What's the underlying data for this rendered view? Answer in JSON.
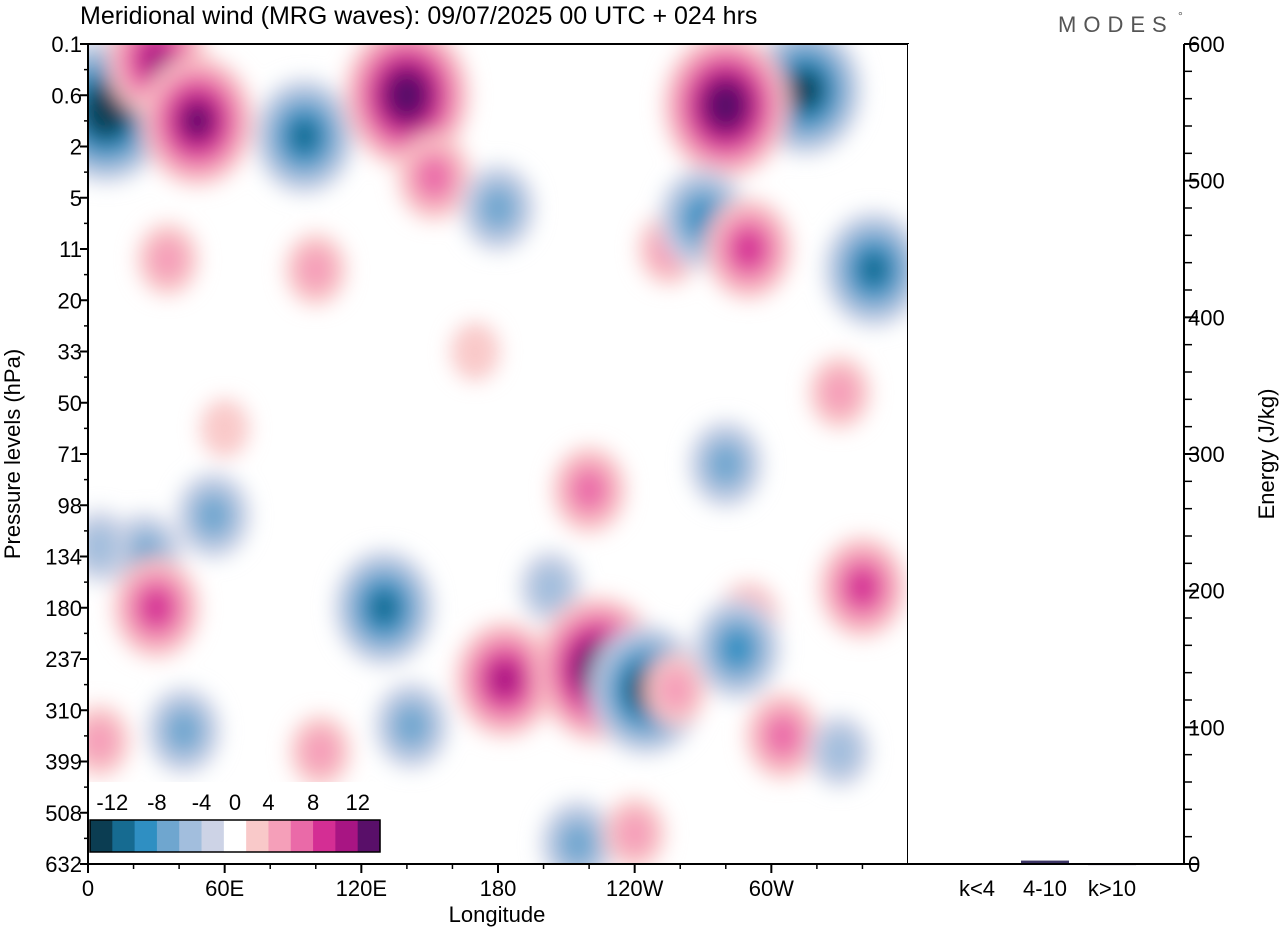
{
  "header": {
    "title": "Meridional wind (MRG waves):  09/07/2025  00 UTC  + 024 hrs",
    "brand": "MODES",
    "brand_mark": "°"
  },
  "chart_data": [
    {
      "type": "heatmap",
      "title": "Meridional wind (MRG waves):  09/07/2025  00 UTC  + 024 hrs",
      "xlabel": "Longitude",
      "ylabel": "Pressure levels (hPa)",
      "x_ticks": [
        "0",
        "60E",
        "120E",
        "180",
        "120W",
        "60W"
      ],
      "x_tick_degrees": [
        0,
        60,
        120,
        180,
        240,
        300
      ],
      "xlim": [
        0,
        360
      ],
      "y_ticks": [
        "0.1",
        "0.6",
        "2",
        "5",
        "11",
        "20",
        "33",
        "50",
        "71",
        "98",
        "134",
        "180",
        "237",
        "310",
        "399",
        "508",
        "632"
      ],
      "y_scale": "model levels (top 0.1 hPa, bottom 632 hPa)",
      "colorbar": {
        "labels": [
          "-12",
          "-8",
          "-4",
          "0",
          "4",
          "8",
          "12"
        ],
        "bounds": [
          -14,
          -12,
          -10,
          -8,
          -6,
          -4,
          -2,
          2,
          4,
          6,
          8,
          10,
          12,
          14
        ],
        "colors": [
          "#0b3d52",
          "#166b91",
          "#2f8fc2",
          "#6fa6cf",
          "#a2bedd",
          "#cdd3e6",
          "#ffffff",
          "#f9c9c9",
          "#f59fb9",
          "#ea6aa8",
          "#d42e94",
          "#a81583",
          "#590f69"
        ],
        "placement": "lower-left"
      },
      "features": [
        {
          "lon": 8,
          "level": 1.3,
          "value": -14
        },
        {
          "lon": 30,
          "level": 0.3,
          "value": 10
        },
        {
          "lon": 48,
          "level": 1.5,
          "value": 12
        },
        {
          "lon": 95,
          "level": 1.8,
          "value": -10
        },
        {
          "lon": 140,
          "level": 1.0,
          "value": 14
        },
        {
          "lon": 152,
          "level": 2.6,
          "value": 6
        },
        {
          "lon": 315,
          "level": 0.9,
          "value": -12
        },
        {
          "lon": 280,
          "level": 1.2,
          "value": 14
        },
        {
          "lon": 35,
          "level": 4.2,
          "value": 4
        },
        {
          "lon": 100,
          "level": 4.4,
          "value": 4
        },
        {
          "lon": 180,
          "level": 3.2,
          "value": -6
        },
        {
          "lon": 255,
          "level": 4.0,
          "value": 4
        },
        {
          "lon": 270,
          "level": 3.4,
          "value": -8
        },
        {
          "lon": 290,
          "level": 4.0,
          "value": 8
        },
        {
          "lon": 345,
          "level": 4.4,
          "value": -10
        },
        {
          "lon": 25,
          "level": 10.0,
          "value": -6
        },
        {
          "lon": 290,
          "level": 11.2,
          "value": 4
        },
        {
          "lon": 170,
          "level": 6.0,
          "value": 2
        },
        {
          "lon": 330,
          "level": 6.8,
          "value": 4
        },
        {
          "lon": 60,
          "level": 7.5,
          "value": 2
        },
        {
          "lon": 280,
          "level": 8.2,
          "value": -6
        },
        {
          "lon": 55,
          "level": 9.2,
          "value": -6
        },
        {
          "lon": 5,
          "level": 9.8,
          "value": -4
        },
        {
          "lon": 30,
          "level": 11.0,
          "value": 8
        },
        {
          "lon": 130,
          "level": 11.0,
          "value": -10
        },
        {
          "lon": 142,
          "level": 13.3,
          "value": -6
        },
        {
          "lon": 183,
          "level": 12.4,
          "value": 10
        },
        {
          "lon": 203,
          "level": 10.6,
          "value": -4
        },
        {
          "lon": 224,
          "level": 12.2,
          "value": 14
        },
        {
          "lon": 245,
          "level": 12.6,
          "value": -12
        },
        {
          "lon": 220,
          "level": 8.7,
          "value": 6
        },
        {
          "lon": 258,
          "level": 12.6,
          "value": 4
        },
        {
          "lon": 285,
          "level": 11.8,
          "value": -8
        },
        {
          "lon": 305,
          "level": 13.5,
          "value": 6
        },
        {
          "lon": 340,
          "level": 10.6,
          "value": 8
        },
        {
          "lon": 42,
          "level": 13.4,
          "value": -6
        },
        {
          "lon": 102,
          "level": 13.8,
          "value": 4
        },
        {
          "lon": 5,
          "level": 13.6,
          "value": 4
        },
        {
          "lon": 215,
          "level": 15.6,
          "value": -6
        },
        {
          "lon": 240,
          "level": 15.4,
          "value": 4
        },
        {
          "lon": 330,
          "level": 13.8,
          "value": -4
        }
      ],
      "units": ""
    },
    {
      "type": "bar",
      "categories": [
        "k<4",
        "4-10",
        "k>10"
      ],
      "values": [
        0.5,
        2.5,
        0.3
      ],
      "ylabel": "Energy (J/kg)",
      "ylim": [
        0,
        600
      ],
      "y_ticks": [
        "0",
        "100",
        "200",
        "300",
        "400",
        "500",
        "600"
      ],
      "bar_color": "#3d3566"
    }
  ]
}
